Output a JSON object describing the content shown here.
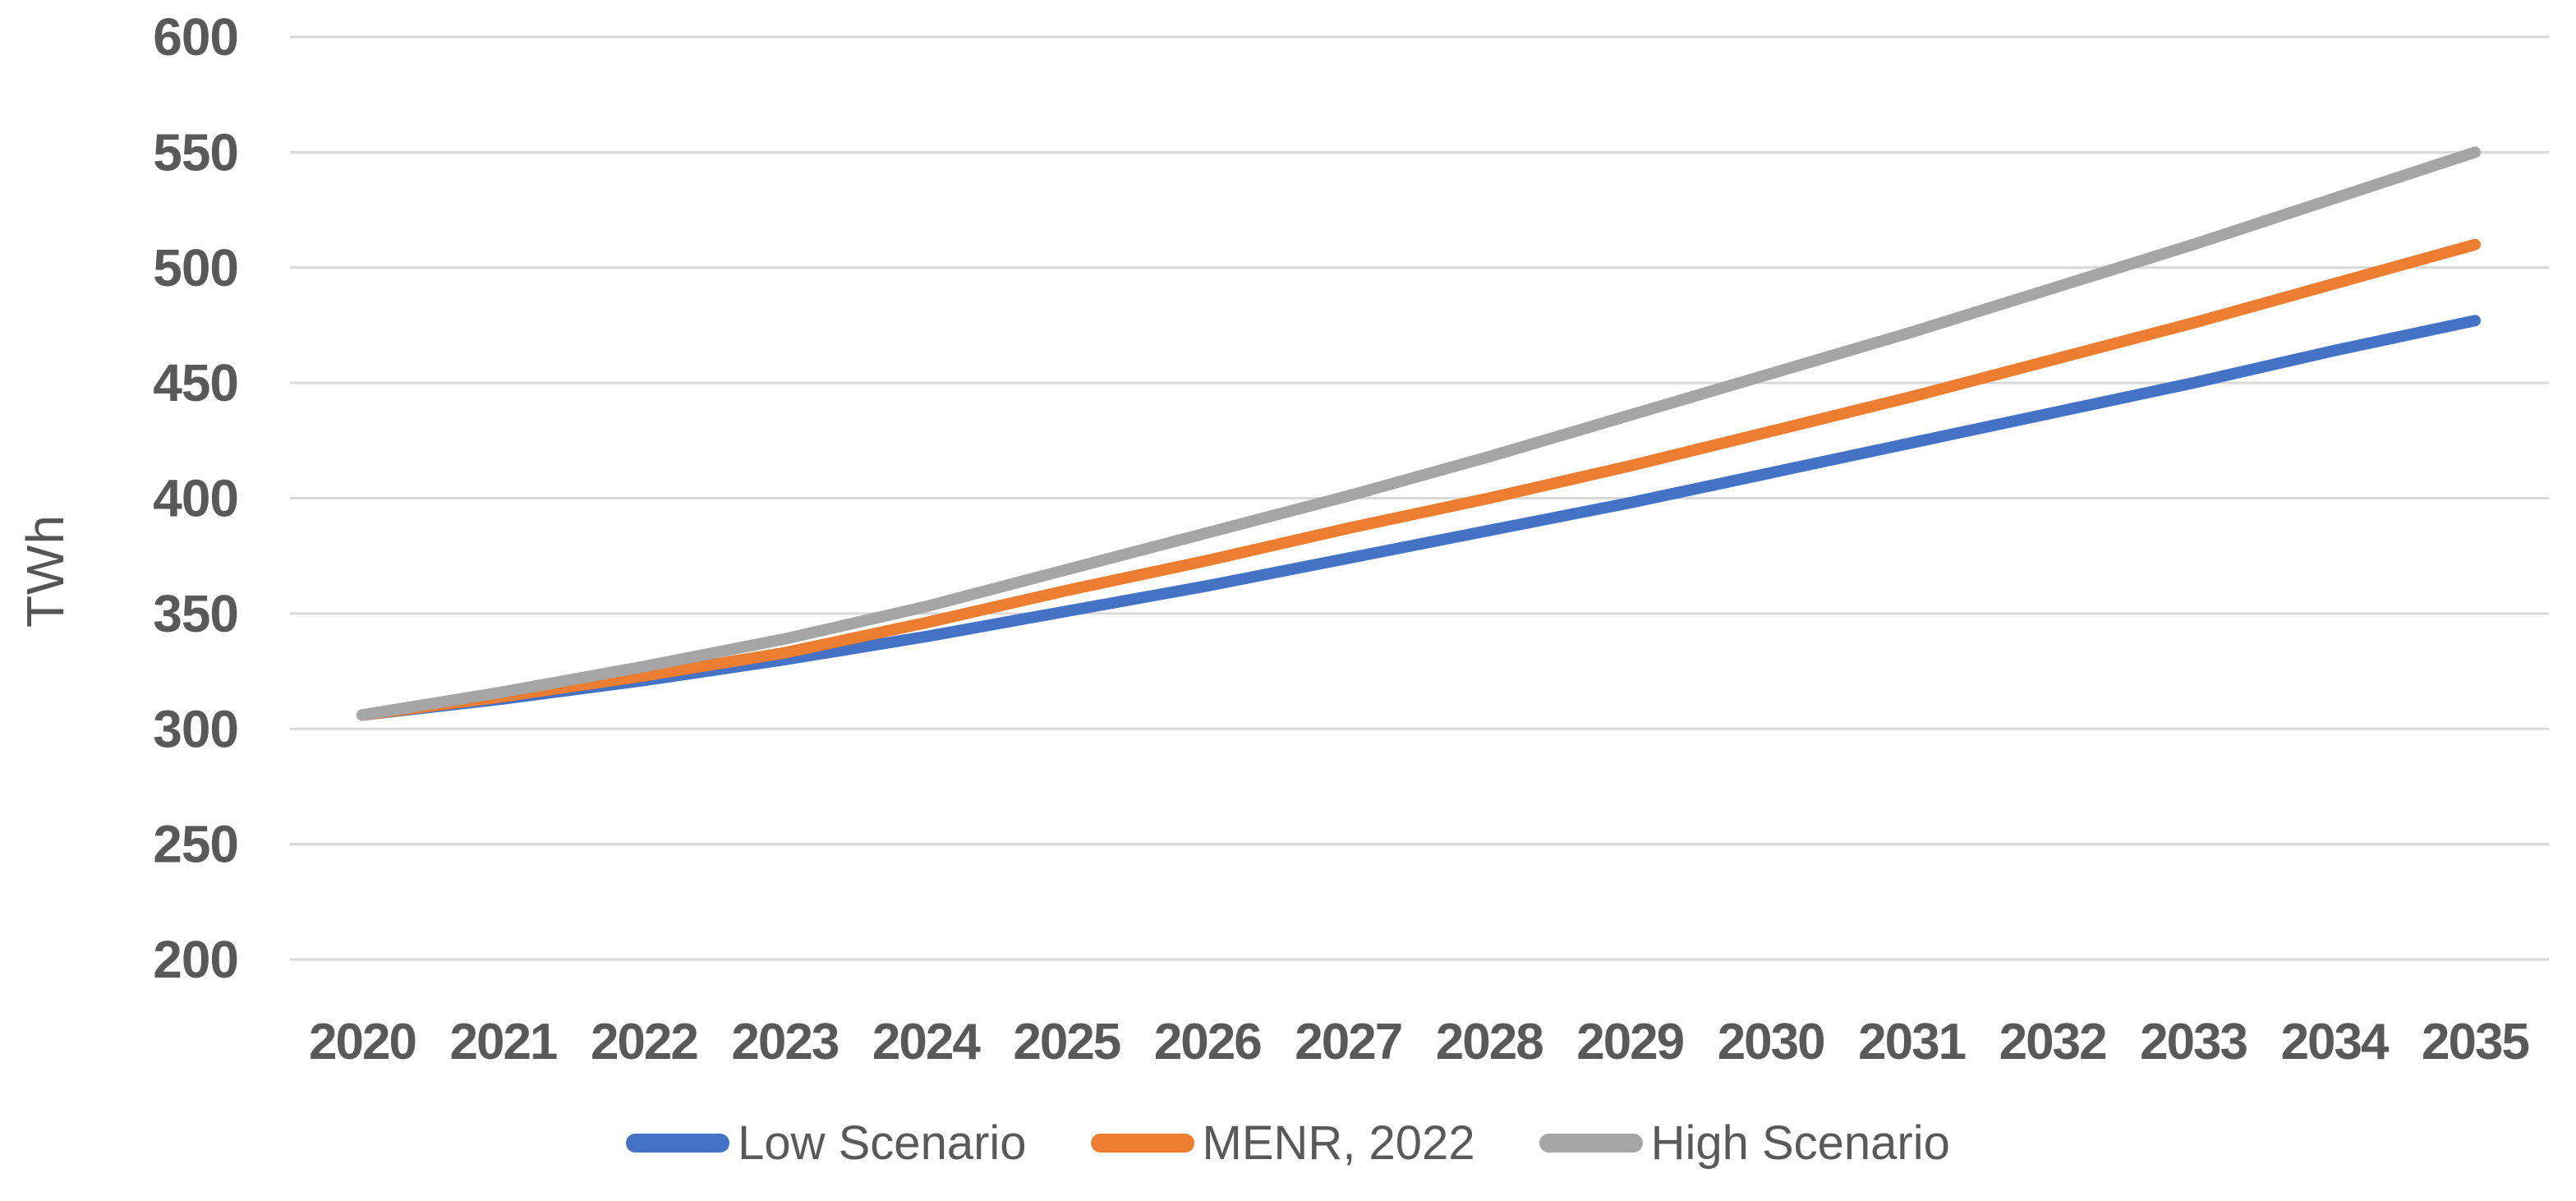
{
  "chart_data": {
    "type": "line",
    "title": "",
    "xlabel": "",
    "ylabel": "TWh",
    "ylim": [
      200,
      600
    ],
    "yticks": [
      200,
      250,
      300,
      350,
      400,
      450,
      500,
      550,
      600
    ],
    "grid": "horizontal",
    "gridline_color": "#D9D9D9",
    "tick_label_color": "#595959",
    "legend_position": "bottom",
    "categories": [
      "2020",
      "2021",
      "2022",
      "2023",
      "2024",
      "2025",
      "2026",
      "2027",
      "2028",
      "2029",
      "2030",
      "2031",
      "2032",
      "2033",
      "2034",
      "2035"
    ],
    "series": [
      {
        "name": "Low Scenario",
        "color": "#4472C4",
        "values": [
          306,
          313,
          321,
          330,
          340,
          351,
          362,
          374,
          386,
          398,
          411,
          424,
          437,
          450,
          464,
          477
        ]
      },
      {
        "name": "MENR, 2022",
        "color": "#ED7D31",
        "values": [
          306,
          314,
          323,
          333,
          346,
          360,
          373,
          387,
          400,
          414,
          429,
          444,
          460,
          476,
          493,
          510
        ]
      },
      {
        "name": "High Scenario",
        "color": "#A5A5A5",
        "values": [
          306,
          316,
          327,
          339,
          353,
          369,
          385,
          401,
          418,
          436,
          454,
          472,
          491,
          510,
          530,
          550
        ]
      }
    ]
  }
}
